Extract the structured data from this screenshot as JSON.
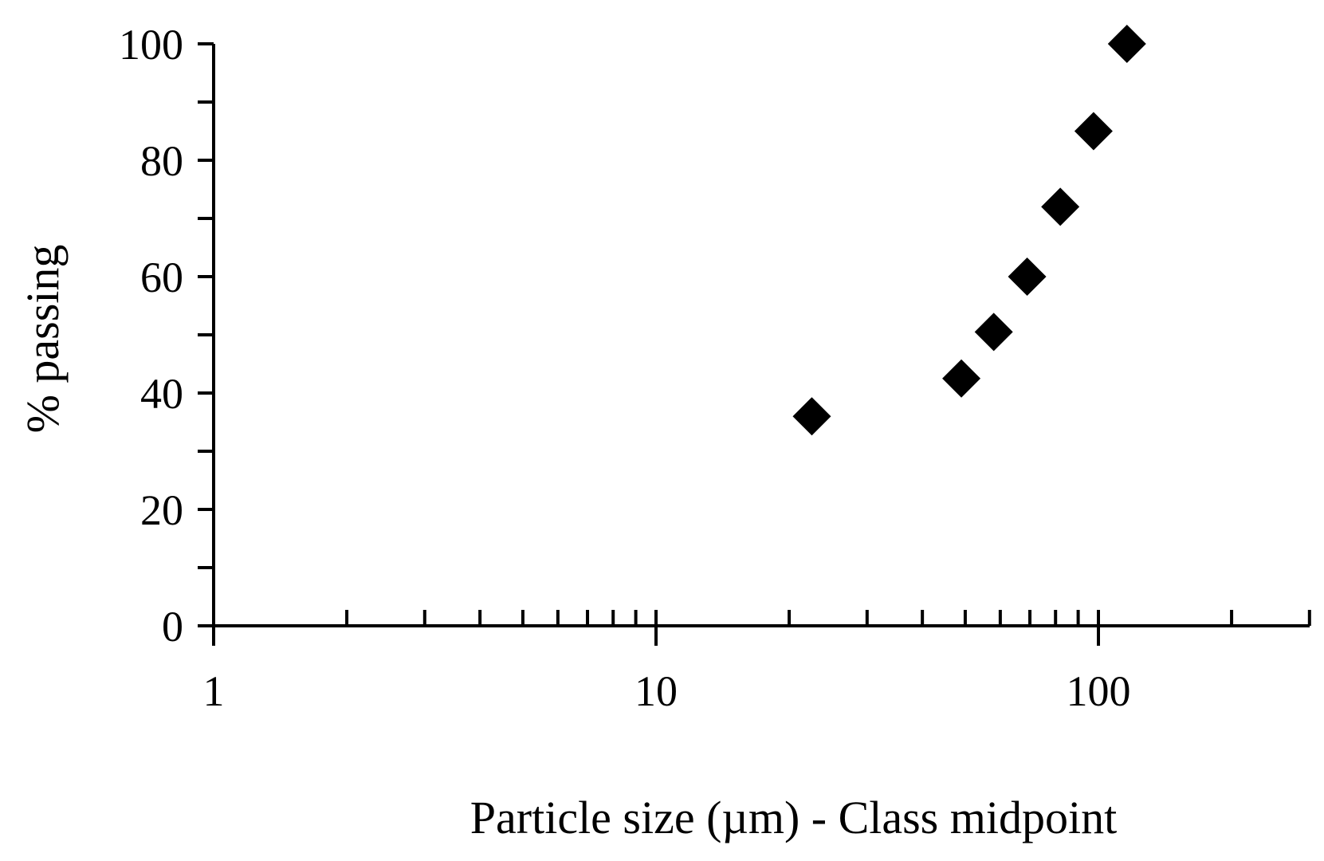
{
  "chart_data": {
    "type": "scatter",
    "title": "",
    "xlabel": "Particle size (µm) - Class midpoint",
    "ylabel": "% passing",
    "x_scale": "log",
    "xlim": [
      1,
      300
    ],
    "ylim": [
      0,
      100
    ],
    "x_tick_labels": [
      "1",
      "10",
      "100"
    ],
    "y_tick_labels": [
      "0",
      "20",
      "40",
      "60",
      "80",
      "100"
    ],
    "grid": false,
    "legend": "none",
    "marker": "diamond",
    "marker_color": "#000000",
    "series": [
      {
        "points": [
          {
            "x": 22.5,
            "y": 36
          },
          {
            "x": 49,
            "y": 42.5
          },
          {
            "x": 58,
            "y": 50.5
          },
          {
            "x": 69,
            "y": 60
          },
          {
            "x": 82,
            "y": 72
          },
          {
            "x": 97.5,
            "y": 85
          },
          {
            "x": 116,
            "y": 100
          }
        ]
      }
    ]
  }
}
